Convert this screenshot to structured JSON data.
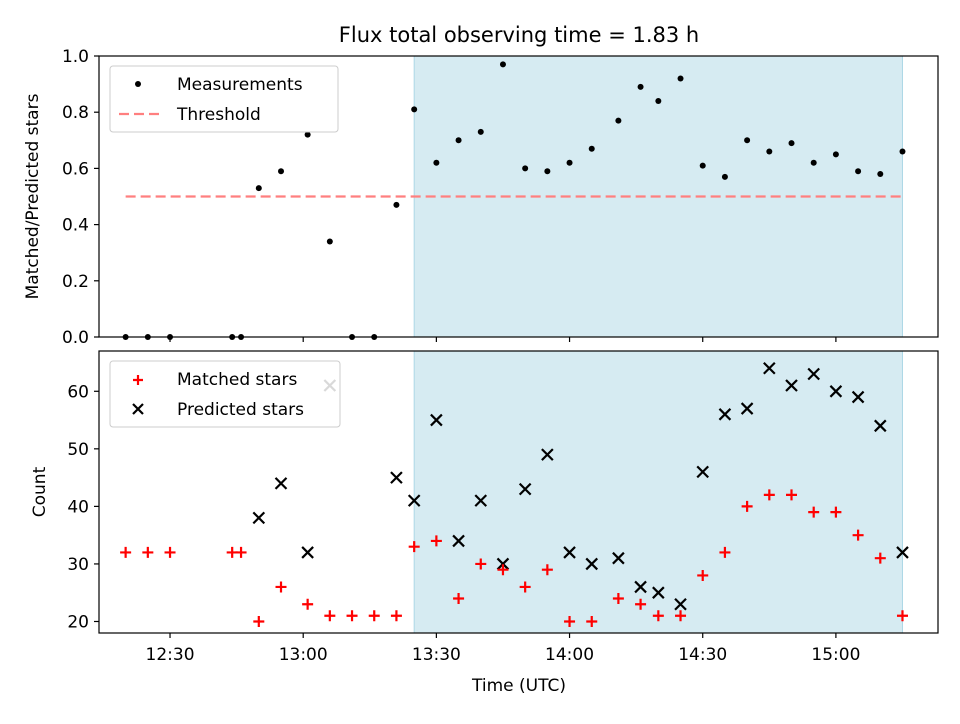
{
  "chart_data": [
    {
      "type": "scatter",
      "title": "Flux total observing time = 1.83 h",
      "xlabel": "",
      "ylabel": "Matched/Predicted stars",
      "ylim": [
        0,
        1.0
      ],
      "yticks": [
        0.0,
        0.2,
        0.4,
        0.6,
        0.8,
        1.0
      ],
      "ytick_labels": [
        "0.0",
        "0.2",
        "0.4",
        "0.6",
        "0.8",
        "1.0"
      ],
      "legend_placement": "top-left",
      "shaded_span": {
        "start": "13:25",
        "end": "15:15",
        "color": "#add8e6"
      },
      "series": [
        {
          "name": "Measurements",
          "marker": "dot",
          "color": "#000000",
          "points": [
            [
              "12:20",
              0.0
            ],
            [
              "12:25",
              0.0
            ],
            [
              "12:30",
              0.0
            ],
            [
              "12:44",
              0.0
            ],
            [
              "12:46",
              0.0
            ],
            [
              "12:50",
              0.53
            ],
            [
              "12:55",
              0.59
            ],
            [
              "13:01",
              0.72
            ],
            [
              "13:06",
              0.34
            ],
            [
              "13:11",
              0.0
            ],
            [
              "13:16",
              0.0
            ],
            [
              "13:21",
              0.47
            ],
            [
              "13:25",
              0.81
            ],
            [
              "13:30",
              0.62
            ],
            [
              "13:35",
              0.7
            ],
            [
              "13:40",
              0.73
            ],
            [
              "13:45",
              0.97
            ],
            [
              "13:50",
              0.6
            ],
            [
              "13:55",
              0.59
            ],
            [
              "14:00",
              0.62
            ],
            [
              "14:05",
              0.67
            ],
            [
              "14:11",
              0.77
            ],
            [
              "14:16",
              0.89
            ],
            [
              "14:20",
              0.84
            ],
            [
              "14:25",
              0.92
            ],
            [
              "14:30",
              0.61
            ],
            [
              "14:35",
              0.57
            ],
            [
              "14:40",
              0.7
            ],
            [
              "14:45",
              0.66
            ],
            [
              "14:50",
              0.69
            ],
            [
              "14:55",
              0.62
            ],
            [
              "15:00",
              0.65
            ],
            [
              "15:05",
              0.59
            ],
            [
              "15:10",
              0.58
            ],
            [
              "15:15",
              0.66
            ]
          ]
        },
        {
          "name": "Threshold",
          "marker": "dashed-line",
          "color": "#ff7f7f",
          "points": [
            [
              "12:20",
              0.5
            ],
            [
              "15:15",
              0.5
            ]
          ]
        }
      ]
    },
    {
      "type": "scatter",
      "title": "",
      "xlabel": "Time (UTC)",
      "ylabel": "Count",
      "ylim": [
        18,
        67
      ],
      "yticks": [
        20,
        30,
        40,
        50,
        60
      ],
      "ytick_labels": [
        "20",
        "30",
        "40",
        "50",
        "60"
      ],
      "xticks": [
        "12:30",
        "13:00",
        "13:30",
        "14:00",
        "14:30",
        "15:00"
      ],
      "xtick_labels": [
        "12:30",
        "13:00",
        "13:30",
        "14:00",
        "14:30",
        "15:00"
      ],
      "xlim": [
        "12:14",
        "15:23"
      ],
      "legend_placement": "top-left",
      "shaded_span": {
        "start": "13:25",
        "end": "15:15",
        "color": "#add8e6"
      },
      "series": [
        {
          "name": "Matched stars",
          "marker": "plus",
          "color": "#ff0000",
          "points": [
            [
              "12:20",
              32
            ],
            [
              "12:25",
              32
            ],
            [
              "12:30",
              32
            ],
            [
              "12:44",
              32
            ],
            [
              "12:46",
              32
            ],
            [
              "12:50",
              20
            ],
            [
              "12:55",
              26
            ],
            [
              "13:01",
              23
            ],
            [
              "13:06",
              21
            ],
            [
              "13:11",
              21
            ],
            [
              "13:16",
              21
            ],
            [
              "13:21",
              21
            ],
            [
              "13:25",
              33
            ],
            [
              "13:30",
              34
            ],
            [
              "13:35",
              24
            ],
            [
              "13:40",
              30
            ],
            [
              "13:45",
              29
            ],
            [
              "13:50",
              26
            ],
            [
              "13:55",
              29
            ],
            [
              "14:00",
              20
            ],
            [
              "14:05",
              20
            ],
            [
              "14:11",
              24
            ],
            [
              "14:16",
              23
            ],
            [
              "14:20",
              21
            ],
            [
              "14:25",
              21
            ],
            [
              "14:30",
              28
            ],
            [
              "14:35",
              32
            ],
            [
              "14:40",
              40
            ],
            [
              "14:45",
              42
            ],
            [
              "14:50",
              42
            ],
            [
              "14:55",
              39
            ],
            [
              "15:00",
              39
            ],
            [
              "15:05",
              35
            ],
            [
              "15:10",
              31
            ],
            [
              "15:15",
              21
            ]
          ]
        },
        {
          "name": "Predicted stars",
          "marker": "x",
          "color": "#000000",
          "points": [
            [
              "12:50",
              38
            ],
            [
              "12:55",
              44
            ],
            [
              "13:01",
              32
            ],
            [
              "13:06",
              61
            ],
            [
              "13:21",
              45
            ],
            [
              "13:25",
              41
            ],
            [
              "13:30",
              55
            ],
            [
              "13:35",
              34
            ],
            [
              "13:40",
              41
            ],
            [
              "13:45",
              30
            ],
            [
              "13:50",
              43
            ],
            [
              "13:55",
              49
            ],
            [
              "14:00",
              32
            ],
            [
              "14:05",
              30
            ],
            [
              "14:11",
              31
            ],
            [
              "14:16",
              26
            ],
            [
              "14:20",
              25
            ],
            [
              "14:25",
              23
            ],
            [
              "14:30",
              46
            ],
            [
              "14:35",
              56
            ],
            [
              "14:40",
              57
            ],
            [
              "14:45",
              64
            ],
            [
              "14:50",
              61
            ],
            [
              "14:55",
              63
            ],
            [
              "15:00",
              60
            ],
            [
              "15:05",
              59
            ],
            [
              "15:10",
              54
            ],
            [
              "15:15",
              32
            ]
          ]
        }
      ]
    }
  ]
}
